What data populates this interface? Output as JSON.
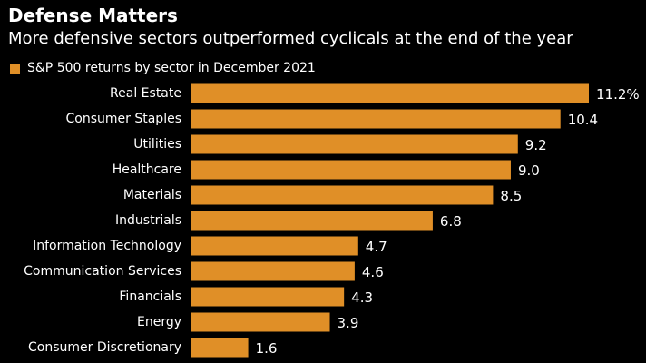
{
  "chart_data": {
    "type": "bar",
    "orientation": "horizontal",
    "title": "Defense Matters",
    "subtitle": "More defensive sectors outperformed cyclicals at the end of the year",
    "categories": [
      "Real Estate",
      "Consumer Staples",
      "Utilities",
      "Healthcare",
      "Materials",
      "Industrials",
      "Information Technology",
      "Communication Services",
      "Financials",
      "Energy",
      "Consumer Discretionary"
    ],
    "series": [
      {
        "name": "S&P 500 returns by sector in December 2021",
        "values": [
          11.2,
          10.4,
          9.2,
          9.0,
          8.5,
          6.8,
          4.7,
          4.6,
          4.3,
          3.9,
          1.6
        ],
        "value_labels": [
          "11.2%",
          "10.4",
          "9.2",
          "9.0",
          "8.5",
          "6.8",
          "4.7",
          "4.6",
          "4.3",
          "3.9",
          "1.6"
        ]
      }
    ],
    "xlim": [
      0,
      11.2
    ],
    "xlabel": "",
    "ylabel": "",
    "grid": false,
    "legend_position": "top-left"
  },
  "colors": {
    "background": "#000000",
    "bar": "#e08f27",
    "text": "#ffffff"
  }
}
